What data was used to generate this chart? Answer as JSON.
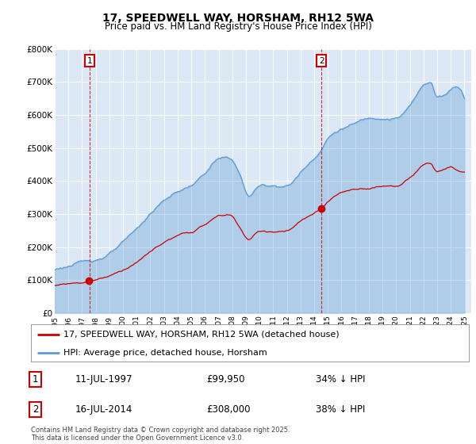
{
  "title_line1": "17, SPEEDWELL WAY, HORSHAM, RH12 5WA",
  "title_line2": "Price paid vs. HM Land Registry's House Price Index (HPI)",
  "bg_color": "#ffffff",
  "plot_bg_color": "#dce8f5",
  "red_color": "#cc0000",
  "blue_color": "#5b9bd5",
  "annotation1_date": "11-JUL-1997",
  "annotation1_price": 99950,
  "annotation1_text": "34% ↓ HPI",
  "annotation2_date": "16-JUL-2014",
  "annotation2_price": 308000,
  "annotation2_text": "38% ↓ HPI",
  "legend_line1": "17, SPEEDWELL WAY, HORSHAM, RH12 5WA (detached house)",
  "legend_line2": "HPI: Average price, detached house, Horsham",
  "footer": "Contains HM Land Registry data © Crown copyright and database right 2025.\nThis data is licensed under the Open Government Licence v3.0.",
  "ylim": [
    0,
    800000
  ],
  "yticks": [
    0,
    100000,
    200000,
    300000,
    400000,
    500000,
    600000,
    700000,
    800000
  ],
  "ytick_labels": [
    "£0",
    "£100K",
    "£200K",
    "£300K",
    "£400K",
    "£500K",
    "£600K",
    "£700K",
    "£800K"
  ],
  "xlim_start": 1995.3,
  "xlim_end": 2025.5,
  "sale1_year": 1997.54,
  "sale1_price": 99950,
  "sale2_year": 2014.54,
  "sale2_price": 308000
}
